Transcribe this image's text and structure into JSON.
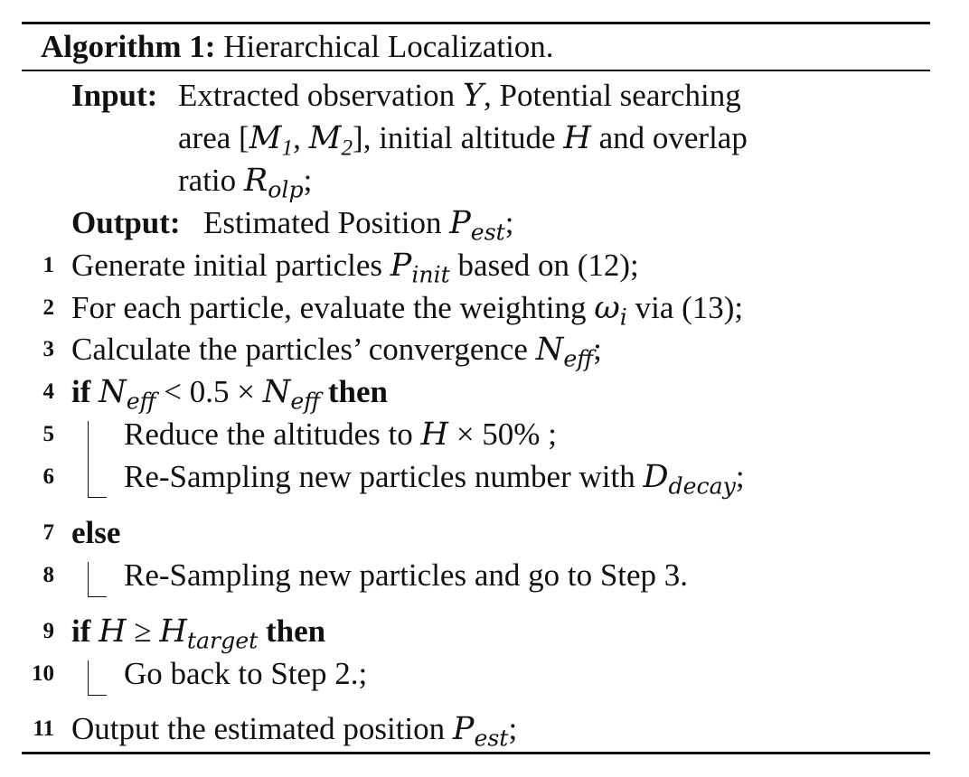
{
  "algorithm": {
    "label": "Algorithm 1:",
    "title": "Hierarchical Localization."
  },
  "input": {
    "label": "Input:",
    "line1": "Extracted observation Y, Potential searching",
    "line2": "area [M1, M2], initial altitude H and overlap",
    "line3": "ratio Rolp;"
  },
  "output": {
    "label": "Output:",
    "text": "Estimated Position Pest;"
  },
  "steps": [
    {
      "num": "1",
      "text": "Generate initial particles Pinit based on (12);"
    },
    {
      "num": "2",
      "text": "For each particle, evaluate the weighting ωi via (13);"
    },
    {
      "num": "3",
      "text": "Calculate the particles’ convergence Neff;"
    },
    {
      "num": "4",
      "text": "if Neff < 0.5 × Neff then"
    },
    {
      "num": "5",
      "text": "Reduce the altitudes to H × 50% ;"
    },
    {
      "num": "6",
      "text": "Re-Sampling new particles number with Ddecay;"
    },
    {
      "num": "7",
      "text": "else"
    },
    {
      "num": "8",
      "text": "Re-Sampling new particles and go to Step 3."
    },
    {
      "num": "9",
      "text": "if H ≥ Htarget then"
    },
    {
      "num": "10",
      "text": "Go back to Step 2.;"
    },
    {
      "num": "11",
      "text": "Output the estimated position Pest;"
    }
  ]
}
